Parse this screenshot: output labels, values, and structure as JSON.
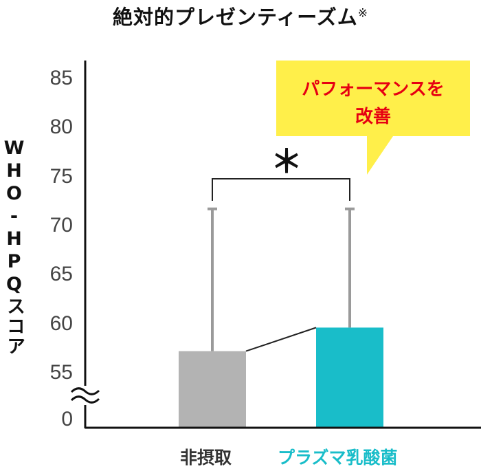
{
  "chart_data": {
    "type": "bar",
    "title": "絶対的プレゼンティーズム",
    "title_mark": "※",
    "ylabel": "WHO-HPQスコア",
    "yticks": [
      "0",
      "55",
      "60",
      "65",
      "70",
      "75",
      "80",
      "85"
    ],
    "ylim": [
      55,
      85
    ],
    "axis_break": true,
    "categories": [
      "非摂取",
      "プラズマ乳酸菌"
    ],
    "values": [
      57.2,
      59.6
    ],
    "error_upper": [
      71.7,
      71.7
    ],
    "significance": "＊",
    "callout": [
      "パフォーマンスを",
      "改善"
    ],
    "colors": {
      "bar_control": "#b3b3b3",
      "bar_treatment": "#19bdc9",
      "category_control": "#333333",
      "category_treatment": "#19bdc9",
      "callout_bg": "#ffef4a",
      "callout_text": "#e60012",
      "error_bar": "#9a9a9a"
    },
    "grid": false
  }
}
